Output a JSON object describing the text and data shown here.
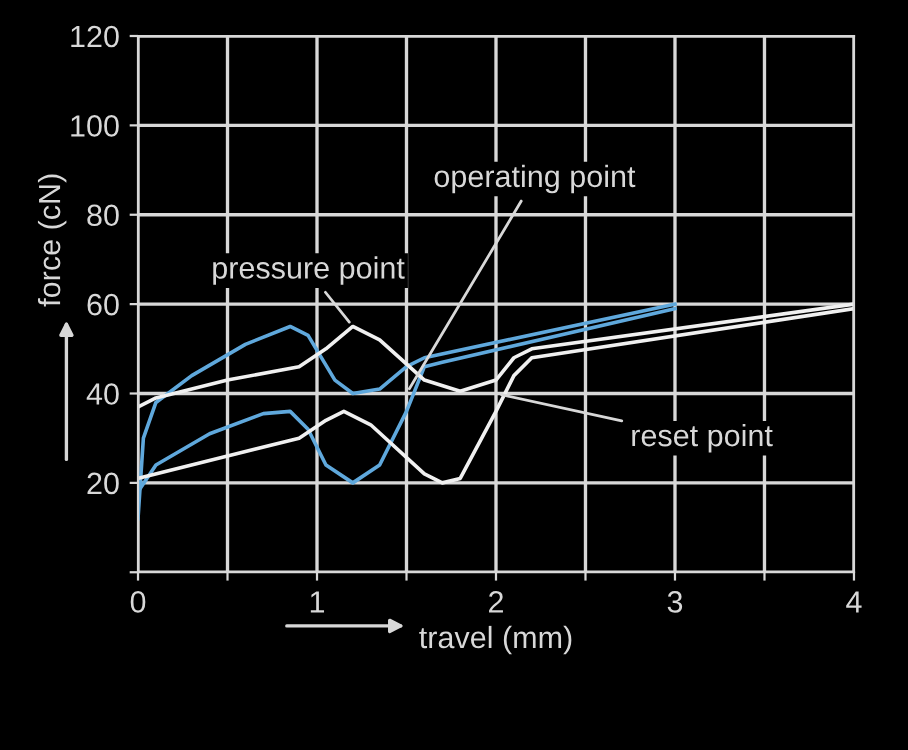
{
  "chart_data": {
    "type": "line",
    "xlabel": "travel (mm)",
    "ylabel": "force (cN)",
    "xlim": [
      0,
      4
    ],
    "xticks": [
      0,
      {
        "value": 0.5,
        "label": null
      },
      1,
      {
        "value": 1.5,
        "label": null
      },
      2,
      {
        "value": 2.5,
        "label": null
      },
      3,
      {
        "value": 3.5,
        "label": null
      },
      4
    ],
    "ylim": [
      0,
      120
    ],
    "yticks": [
      {
        "value": 0,
        "label": null
      },
      20,
      40,
      60,
      80,
      100,
      120
    ],
    "grid": true,
    "marker": "none",
    "line_style": "solid",
    "series": [
      {
        "color": "#5fa8dc",
        "x": [
          0,
          0.03,
          0.1,
          0.3,
          0.6,
          0.85,
          0.95,
          1.1,
          1.2,
          1.35,
          1.5,
          1.6,
          3
        ],
        "values": [
          12,
          30,
          38,
          44,
          51,
          55,
          53,
          43,
          40,
          41,
          46,
          48,
          60
        ]
      },
      {
        "color": "#5fa8dc",
        "x": [
          0,
          0.1,
          0.4,
          0.7,
          0.85,
          0.95,
          1.05,
          1.2,
          1.35,
          1.5,
          1.6,
          1.7,
          3
        ],
        "values": [
          18,
          24,
          31,
          35.5,
          36,
          32,
          24,
          20,
          24,
          36,
          46,
          47,
          59
        ]
      },
      {
        "color": "#f0f0f0",
        "x": [
          0,
          0.1,
          0.5,
          0.9,
          1.05,
          1.2,
          1.35,
          1.6,
          1.8,
          2.0,
          2.1,
          2.2,
          4
        ],
        "values": [
          37,
          39,
          43,
          46,
          50,
          55,
          52,
          43,
          40.5,
          43,
          48,
          50,
          60
        ]
      },
      {
        "color": "#f0f0f0",
        "x": [
          0,
          0.5,
          0.9,
          1.05,
          1.15,
          1.3,
          1.6,
          1.7,
          1.8,
          2.0,
          2.1,
          2.2,
          4
        ],
        "values": [
          21,
          26,
          30,
          34,
          36,
          33,
          22,
          20,
          21,
          36,
          44,
          48,
          59
        ]
      }
    ],
    "annotations": [
      {
        "text": "operating point",
        "x": 1.5,
        "y": 40
      },
      {
        "text": "pressure point",
        "x": 1.2,
        "y": 55
      },
      {
        "text": "reset point",
        "x": 2.0,
        "y": 40
      }
    ]
  }
}
